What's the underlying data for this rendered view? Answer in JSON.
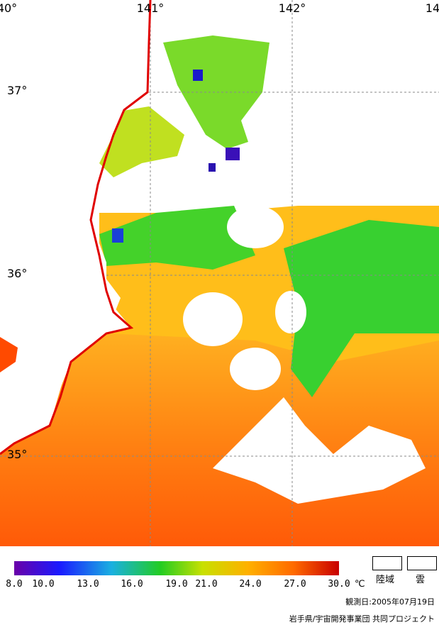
{
  "map": {
    "lon_labels": [
      "40°",
      "141°",
      "142°",
      "14"
    ],
    "lat_labels": [
      "37°",
      "36°",
      "35°"
    ]
  },
  "scale": {
    "tick_labels": [
      "8.0",
      "10.0",
      "13.0",
      "16.0",
      "19.0",
      "21.0",
      "24.0",
      "27.0",
      "30.0"
    ],
    "tick_values": [
      8,
      10,
      13,
      16,
      19,
      21,
      24,
      27,
      30
    ],
    "unit": "℃",
    "colors": [
      "#6a00a8",
      "#1a1aff",
      "#1ab0e0",
      "#22cc22",
      "#c8e000",
      "#ffb000",
      "#ff6a00",
      "#c80000"
    ]
  },
  "legend": {
    "land": "陸域",
    "cloud": "雲"
  },
  "observation_date": "観測日:2005年07月19日",
  "credit": "岩手県/宇宙開発事業団 共同プロジェクト"
}
